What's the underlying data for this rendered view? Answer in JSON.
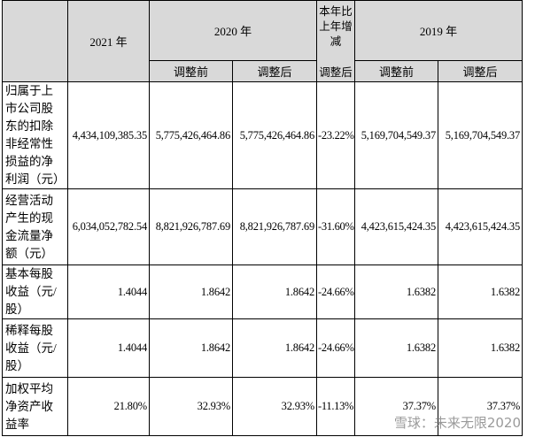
{
  "table": {
    "header_top": [
      "2021 年",
      "2020 年",
      "本年比上年增减",
      "2019 年"
    ],
    "header_sub": [
      "调整前",
      "调整后",
      "调整后",
      "调整前",
      "调整后"
    ],
    "rows": [
      [
        "归属于上市公司股东的扣除非经常性损益的净利润（元）",
        "4,434,109,385.35",
        "5,775,426,464.86",
        "5,775,426,464.86",
        "-23.22%",
        "5,169,704,549.37",
        "5,169,704,549.37"
      ],
      [
        "经营活动产生的现金流量净额（元）",
        "6,034,052,782.54",
        "8,821,926,787.69",
        "8,821,926,787.69",
        "-31.60%",
        "4,423,615,424.35",
        "4,423,615,424.35"
      ],
      [
        "基本每股收益（元/股）",
        "1.4044",
        "1.8642",
        "1.8642",
        "-24.66%",
        "1.6382",
        "1.6382"
      ],
      [
        "稀释每股收益（元/股）",
        "1.4044",
        "1.8642",
        "1.8642",
        "-24.66%",
        "1.6382",
        "1.6382"
      ],
      [
        "加权平均净资产收益率",
        "21.80%",
        "32.93%",
        "32.93%",
        "-11.13%",
        "37.37%",
        "37.37%"
      ]
    ]
  },
  "watermark": "雪球：未来无限2020"
}
